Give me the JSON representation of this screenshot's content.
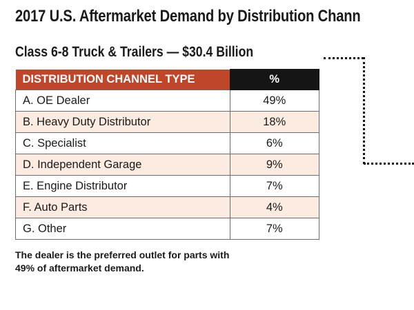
{
  "title": "2017 U.S. Aftermarket Demand by Distribution Chann",
  "subtitle": "Class 6-8 Truck & Trailers — $30.4 Billion",
  "table": {
    "headers": [
      "DISTRIBUTION CHANNEL TYPE",
      "%"
    ],
    "rows": [
      {
        "type": "A. OE Dealer",
        "pct": "49%"
      },
      {
        "type": "B. Heavy Duty Distributor",
        "pct": "18%"
      },
      {
        "type": "C. Specialist",
        "pct": "6%"
      },
      {
        "type": "D. Independent Garage",
        "pct": "9%"
      },
      {
        "type": "E. Engine Distributor",
        "pct": "7%"
      },
      {
        "type": "F. Auto Parts",
        "pct": "4%"
      },
      {
        "type": "G. Other",
        "pct": "7%"
      }
    ]
  },
  "note_lines": [
    "The dealer is the preferred outlet for parts with",
    "49% of aftermarket demand."
  ],
  "colors": {
    "header_red": "#c0462a",
    "header_black": "#151515",
    "row_alt": "#fcebe0"
  }
}
